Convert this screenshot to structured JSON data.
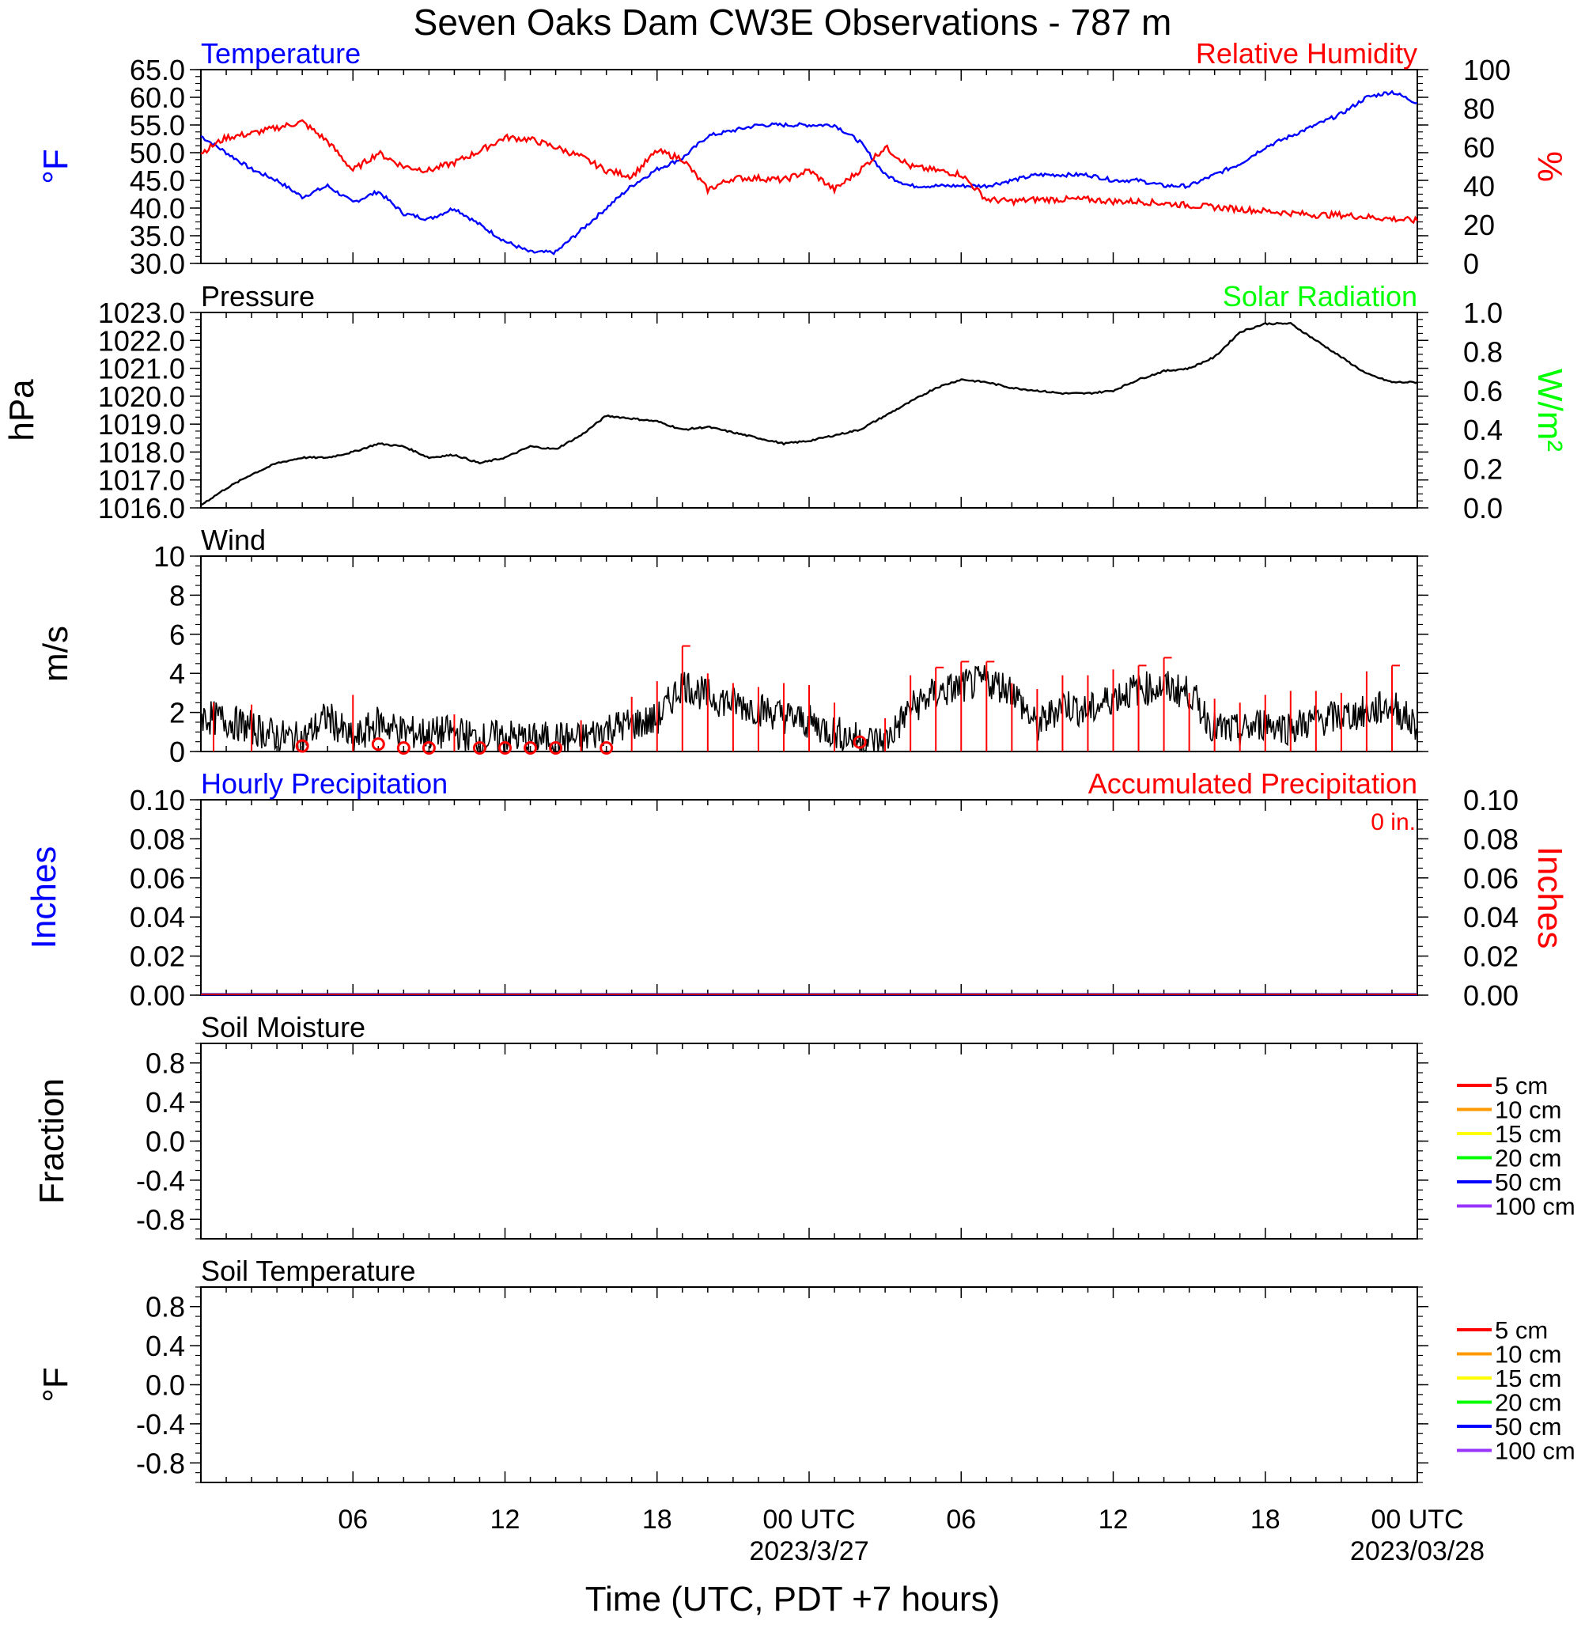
{
  "title": "Seven Oaks Dam CW3E Observations - 787 m",
  "xlabel": "Time (UTC, PDT +7 hours)",
  "x_range_hours": [
    0,
    48
  ],
  "x_ticks": [
    {
      "hour": 6,
      "label": "06",
      "sublabel": ""
    },
    {
      "hour": 12,
      "label": "12",
      "sublabel": ""
    },
    {
      "hour": 18,
      "label": "18",
      "sublabel": ""
    },
    {
      "hour": 24,
      "label": "00 UTC",
      "sublabel": "2023/3/27"
    },
    {
      "hour": 30,
      "label": "06",
      "sublabel": ""
    },
    {
      "hour": 36,
      "label": "12",
      "sublabel": ""
    },
    {
      "hour": 42,
      "label": "18",
      "sublabel": ""
    },
    {
      "hour": 48,
      "label": "00 UTC",
      "sublabel": "2023/03/28"
    }
  ],
  "colors": {
    "temperature": "#0000ff",
    "humidity": "#ff0000",
    "pressure": "#000000",
    "solar": "#00ff00",
    "wind": "#000000",
    "gust": "#ff0000",
    "hourly": "#0000ff",
    "accum": "#ff0000"
  },
  "panels": {
    "temp": {
      "title_left": "Temperature",
      "title_right": "Relative Humidity",
      "ylabel_left": "°F",
      "ylabel_right": "%"
    },
    "pressure": {
      "title_left": "Pressure",
      "title_right": "Solar Radiation",
      "ylabel_left": "hPa",
      "ylabel_right": "W/m²"
    },
    "wind": {
      "title_left": "Wind",
      "ylabel_left": "m/s"
    },
    "precip": {
      "title_left": "Hourly Precipitation",
      "title_right": "Accumulated Precipitation",
      "total": "0 in.",
      "ylabel_left": "Inches",
      "ylabel_right": "Inches"
    },
    "soil_moisture": {
      "title_left": "Soil Moisture",
      "ylabel_left": "Fraction"
    },
    "soil_temp": {
      "title_left": "Soil Temperature",
      "ylabel_left": "°F"
    }
  },
  "soil_legend": [
    {
      "label": "5 cm",
      "color": "#ff0000"
    },
    {
      "label": "10 cm",
      "color": "#ff9900"
    },
    {
      "label": "15 cm",
      "color": "#ffff00"
    },
    {
      "label": "20 cm",
      "color": "#00ff00"
    },
    {
      "label": "50 cm",
      "color": "#0000ff"
    },
    {
      "label": "100 cm",
      "color": "#9933ff"
    }
  ],
  "chart_data": [
    {
      "type": "line",
      "title": "Temperature",
      "ylabel": "°F",
      "ylim": [
        30,
        65
      ],
      "yticks": [
        "30.0",
        "35.0",
        "40.0",
        "45.0",
        "50.0",
        "55.0",
        "60.0",
        "65.0"
      ],
      "series": [
        {
          "name": "Temperature",
          "x": [
            0,
            1,
            2,
            3,
            4,
            5,
            6,
            7,
            8,
            9,
            10,
            11,
            12,
            13,
            14,
            15,
            16,
            17,
            18,
            19,
            20,
            21,
            22,
            23,
            24,
            25,
            26,
            27,
            28,
            29,
            30,
            31,
            32,
            33,
            34,
            35,
            36,
            37,
            38,
            39,
            40,
            41,
            42,
            43,
            44,
            45,
            46,
            47,
            48
          ],
          "y": [
            53,
            50,
            47,
            45,
            42,
            44,
            41,
            43,
            39,
            38,
            40,
            37,
            34,
            32,
            32,
            36,
            40,
            44,
            47,
            49,
            53,
            54,
            55,
            55,
            55,
            55,
            52,
            46,
            44,
            44,
            44,
            44,
            45,
            46,
            46,
            46,
            45,
            45,
            44,
            44,
            46,
            48,
            51,
            53,
            55,
            57,
            60,
            61,
            59
          ]
        }
      ],
      "ylim_right": [
        0,
        100
      ],
      "yticks_right": [
        "0",
        "20",
        "40",
        "60",
        "80",
        "100"
      ],
      "series_right": [
        {
          "name": "Relative Humidity",
          "x": [
            0,
            1,
            2,
            3,
            4,
            5,
            6,
            7,
            8,
            9,
            10,
            11,
            12,
            13,
            14,
            15,
            16,
            17,
            18,
            19,
            20,
            21,
            22,
            23,
            24,
            25,
            26,
            27,
            28,
            29,
            30,
            31,
            32,
            33,
            34,
            35,
            36,
            37,
            38,
            39,
            40,
            41,
            42,
            43,
            44,
            45,
            46,
            47,
            48
          ],
          "y": [
            57,
            65,
            67,
            70,
            73,
            63,
            48,
            57,
            50,
            48,
            52,
            58,
            65,
            64,
            60,
            55,
            48,
            45,
            58,
            54,
            38,
            44,
            44,
            43,
            48,
            38,
            48,
            60,
            50,
            48,
            46,
            33,
            32,
            33,
            33,
            33,
            32,
            32,
            31,
            30,
            29,
            28,
            27,
            26,
            25,
            25,
            24,
            23,
            22
          ]
        }
      ]
    },
    {
      "type": "line",
      "title": "Pressure",
      "ylabel": "hPa",
      "ylim": [
        1016,
        1023
      ],
      "yticks": [
        "1016.0",
        "1017.0",
        "1018.0",
        "1019.0",
        "1020.0",
        "1021.0",
        "1022.0",
        "1023.0"
      ],
      "series": [
        {
          "name": "Pressure",
          "x": [
            0,
            1,
            2,
            3,
            4,
            5,
            6,
            7,
            8,
            9,
            10,
            11,
            12,
            13,
            14,
            15,
            16,
            17,
            18,
            19,
            20,
            21,
            22,
            23,
            24,
            25,
            26,
            27,
            28,
            29,
            30,
            31,
            32,
            33,
            34,
            35,
            36,
            37,
            38,
            39,
            40,
            41,
            42,
            43,
            44,
            45,
            46,
            47,
            48
          ],
          "y": [
            1016.1,
            1016.7,
            1017.2,
            1017.6,
            1017.8,
            1017.8,
            1018.0,
            1018.3,
            1018.2,
            1017.8,
            1017.9,
            1017.6,
            1017.8,
            1018.2,
            1018.1,
            1018.6,
            1019.3,
            1019.2,
            1019.1,
            1018.8,
            1018.9,
            1018.7,
            1018.5,
            1018.3,
            1018.4,
            1018.6,
            1018.8,
            1019.3,
            1019.8,
            1020.3,
            1020.6,
            1020.5,
            1020.3,
            1020.2,
            1020.1,
            1020.1,
            1020.2,
            1020.6,
            1020.9,
            1021.0,
            1021.4,
            1022.3,
            1022.6,
            1022.6,
            1022.0,
            1021.4,
            1020.8,
            1020.5,
            1020.5
          ]
        }
      ],
      "ylim_right": [
        0,
        1.0
      ],
      "yticks_right": [
        "0.0",
        "0.2",
        "0.4",
        "0.6",
        "0.8",
        "1.0"
      ]
    },
    {
      "type": "line",
      "title": "Wind",
      "ylabel": "m/s",
      "ylim": [
        0,
        10
      ],
      "yticks": [
        "0",
        "2",
        "4",
        "6",
        "8",
        "10"
      ],
      "series": [
        {
          "name": "Wind",
          "x": [
            0,
            1,
            2,
            3,
            4,
            5,
            6,
            7,
            8,
            9,
            10,
            11,
            12,
            13,
            14,
            15,
            16,
            17,
            18,
            19,
            20,
            21,
            22,
            23,
            24,
            25,
            26,
            27,
            28,
            29,
            30,
            31,
            32,
            33,
            34,
            35,
            36,
            37,
            38,
            39,
            40,
            41,
            42,
            43,
            44,
            45,
            46,
            47,
            48
          ],
          "y": [
            1.8,
            1.6,
            1.2,
            0.8,
            0.6,
            1.8,
            0.5,
            1.5,
            1.0,
            0.9,
            1.0,
            0.6,
            0.8,
            0.6,
            0.7,
            0.6,
            1.2,
            1.4,
            1.6,
            3.5,
            2.8,
            2.5,
            2.2,
            1.8,
            1.5,
            1.0,
            0.6,
            0.5,
            2.2,
            3.0,
            3.3,
            3.6,
            3.2,
            1.2,
            2.5,
            2.0,
            2.8,
            3.2,
            3.3,
            3.0,
            1.2,
            1.0,
            1.5,
            1.2,
            1.6,
            1.8,
            2.0,
            2.4,
            1.2
          ]
        }
      ],
      "gusts": {
        "x": [
          0.5,
          2,
          4,
          6,
          7,
          8,
          9,
          10,
          11,
          12,
          13,
          14,
          15,
          16,
          17,
          18,
          19,
          20,
          21,
          22,
          23,
          24,
          25,
          26,
          27,
          28,
          29,
          30,
          31,
          32,
          33,
          34,
          35,
          36,
          37,
          38,
          39,
          40,
          41,
          42,
          43,
          44,
          45,
          46,
          47
        ],
        "y": [
          2.5,
          2.4,
          0.2,
          2.9,
          0.3,
          0.1,
          0.1,
          1.9,
          0.1,
          0.1,
          0.1,
          0.1,
          1.6,
          0.1,
          2.8,
          3.6,
          5.4,
          4.0,
          3.5,
          3.3,
          3.5,
          3.4,
          2.5,
          0.4,
          1.7,
          3.9,
          4.3,
          4.6,
          4.6,
          3.5,
          3.2,
          3.9,
          3.9,
          4.2,
          4.4,
          4.8,
          3.0,
          2.7,
          2.5,
          2.9,
          3.1,
          3.1,
          3.0,
          4.1,
          4.4
        ]
      }
    },
    {
      "type": "line",
      "title": "Hourly Precipitation",
      "ylabel": "Inches",
      "ylim": [
        0,
        0.1
      ],
      "yticks": [
        "0.00",
        "0.02",
        "0.04",
        "0.06",
        "0.08",
        "0.10"
      ],
      "series": [
        {
          "name": "Hourly Precipitation",
          "x": [
            0,
            48
          ],
          "y": [
            0,
            0
          ]
        },
        {
          "name": "Accumulated Precipitation",
          "x": [
            0,
            48
          ],
          "y": [
            0,
            0
          ]
        }
      ],
      "ylim_right": [
        0,
        0.1
      ],
      "yticks_right": [
        "0.00",
        "0.02",
        "0.04",
        "0.06",
        "0.08",
        "0.10"
      ]
    },
    {
      "type": "line",
      "title": "Soil Moisture",
      "ylabel": "Fraction",
      "ylim": [
        -1,
        1
      ],
      "yticks": [
        "-0.8",
        "-0.4",
        "0.0",
        "0.4",
        "0.8"
      ],
      "series": []
    },
    {
      "type": "line",
      "title": "Soil Temperature",
      "ylabel": "°F",
      "ylim": [
        -1,
        1
      ],
      "yticks": [
        "-0.8",
        "-0.4",
        "0.0",
        "0.4",
        "0.8"
      ],
      "series": []
    }
  ]
}
